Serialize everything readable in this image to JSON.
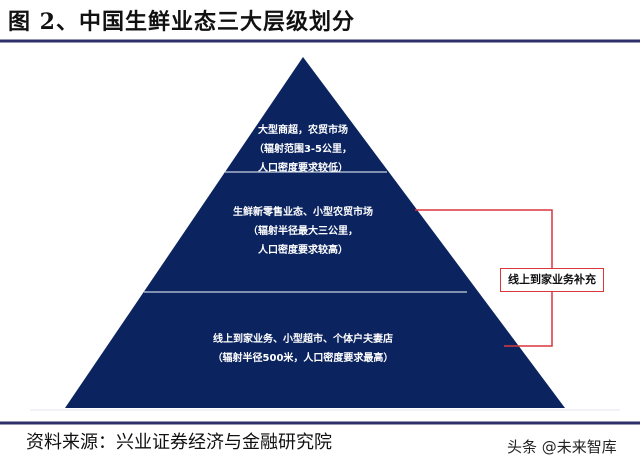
{
  "title": "图 2、中国生鲜业态三大层级划分",
  "tiers": [
    {
      "line1": "大型商超，农贸市场",
      "line2": "（辐射范围3-5公里，",
      "line3": "人口密度要求较低）"
    },
    {
      "line1": "生鲜新零售业态、小型农贸市场",
      "line2": "（辐射半径最大三公里，",
      "line3": "人口密度要求较高）"
    },
    {
      "line1": "线上到家业务、小型超市、个体户夫妻店",
      "line2": "（辐射半径500米，人口密度要求最高）"
    }
  ],
  "bracket_label": "线上到家业务补充",
  "source": "资料来源：兴业证券经济与金融研究院",
  "watermark": "头条 @未来智库",
  "colors": {
    "pyramid": "#0b2460",
    "accent_line": "#2b2f6b",
    "bracket": "#d9363e"
  }
}
